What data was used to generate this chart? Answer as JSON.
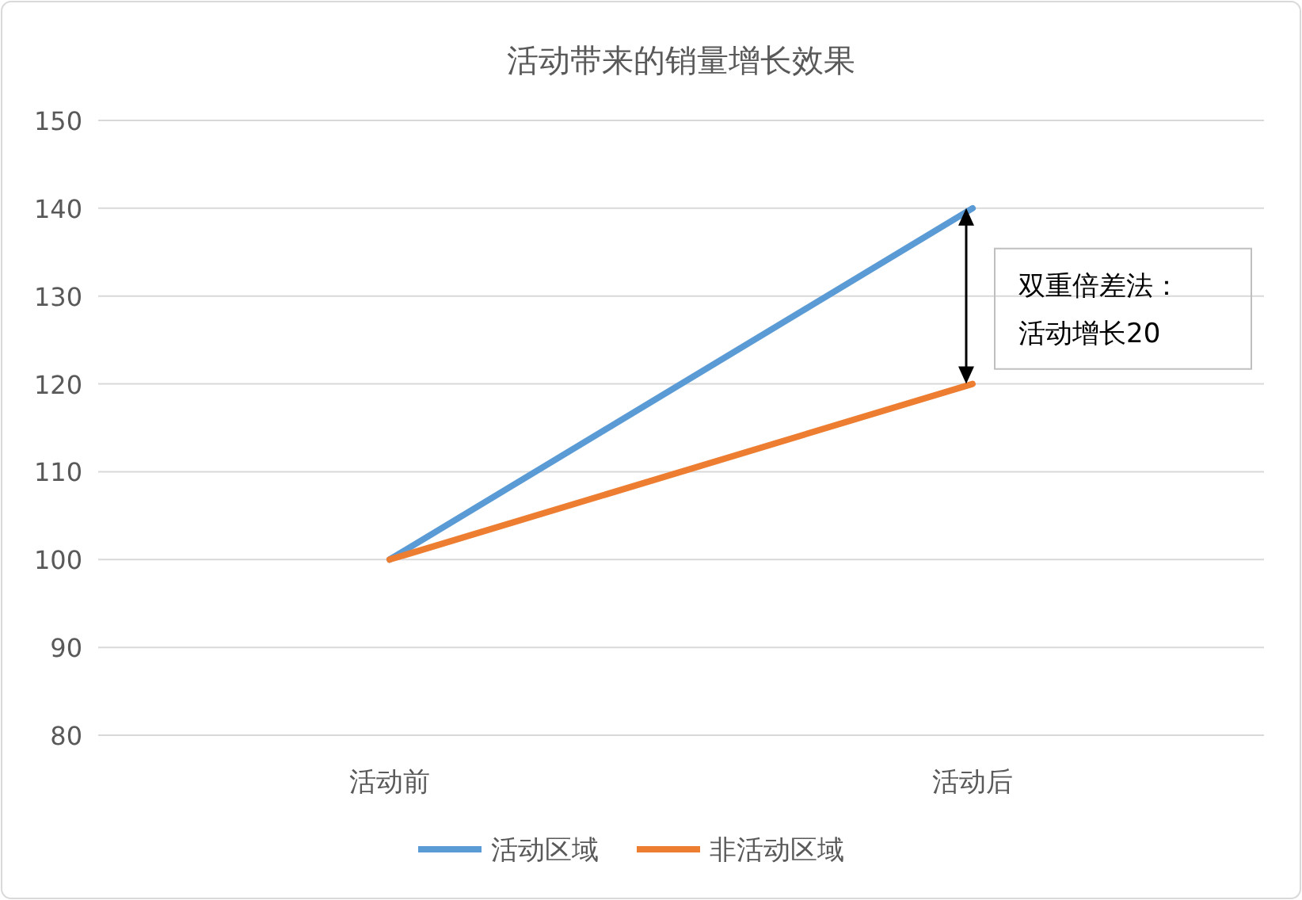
{
  "chart_data": {
    "type": "line",
    "title": "活动带来的销量增长效果",
    "categories": [
      "活动前",
      "活动后"
    ],
    "series": [
      {
        "name": "活动区域",
        "color": "#5b9bd5",
        "values": [
          100,
          140
        ]
      },
      {
        "name": "非活动区域",
        "color": "#ed7d31",
        "values": [
          100,
          120
        ]
      }
    ],
    "ylim": [
      80,
      150
    ],
    "yticks": [
      80,
      90,
      100,
      110,
      120,
      130,
      140,
      150
    ],
    "grid": "y",
    "legend": "bottom",
    "annotations": [
      "双重倍差法：活动增长20"
    ]
  }
}
